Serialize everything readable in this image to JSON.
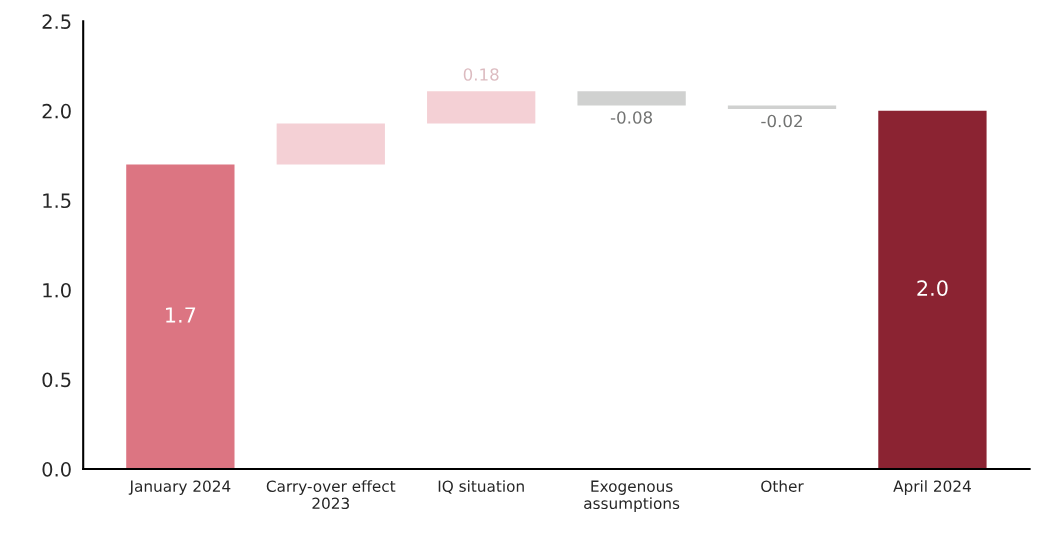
{
  "chart_data": {
    "type": "bar",
    "categories": [
      "January 2024",
      "Carry-over effect\n2023",
      "IQ situation",
      "Exogenous\nassumptions",
      "Other",
      "April 2024"
    ],
    "values": [
      1.7,
      0.23,
      0.18,
      -0.08,
      -0.02,
      2.0
    ],
    "base": [
      0,
      1.7,
      1.93,
      2.11,
      2.03,
      0
    ],
    "colors": [
      "#dc7582",
      "#f4d0d5",
      "#f4d0d5",
      "#d0d1d0",
      "#d0d1d0",
      "#8b2332"
    ],
    "value_labels": [
      "1.7",
      null,
      "0.18",
      "-0.08",
      "-0.02",
      "2.0"
    ],
    "ylim": [
      0,
      2.5
    ],
    "yticks": [
      {
        "value": 0,
        "label": "0.0"
      },
      0.5,
      {
        "value": 1,
        "label": "1.0"
      },
      1.5,
      {
        "value": 2,
        "label": "2.0"
      },
      2.5
    ],
    "grid": false,
    "legend": false
  }
}
